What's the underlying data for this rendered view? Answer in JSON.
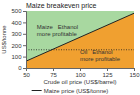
{
  "chart_data": {
    "type": "line",
    "title": "Maize breakeven price",
    "x_label": "Crude oil price (US$/barrel)",
    "y_label": "US$/tonne",
    "xlim": [
      50,
      150
    ],
    "ylim": [
      0,
      500
    ],
    "xticks": [
      50,
      75,
      100,
      125,
      150
    ],
    "yticks": [
      0,
      100,
      200,
      300,
      400,
      500
    ],
    "grid": false,
    "legend": "bottom",
    "series": [
      {
        "type": "area",
        "color": "#a8d8a0",
        "x": [
          50,
          150
        ],
        "values": [
          500,
          500
        ]
      },
      {
        "type": "area",
        "color": "#f0a030",
        "x": [
          50,
          150
        ],
        "values": [
          60,
          480
        ]
      },
      {
        "name": "Maize price (US$/tonne)",
        "type": "line",
        "color": "#222222",
        "line_style": "solid",
        "x": [
          50,
          150
        ],
        "values": [
          60,
          480
        ]
      },
      {
        "type": "line",
        "color": "#222222",
        "line_style": "dotted",
        "x": [
          50,
          150
        ],
        "values": [
          160,
          160
        ]
      }
    ],
    "annotations": [
      {
        "text": "Maize   Ethanol\nmore profitable",
        "x": 60,
        "y": 330
      },
      {
        "text": "Oil   Ethanol\nmore profitable",
        "x": 100,
        "y": 110
      }
    ]
  }
}
